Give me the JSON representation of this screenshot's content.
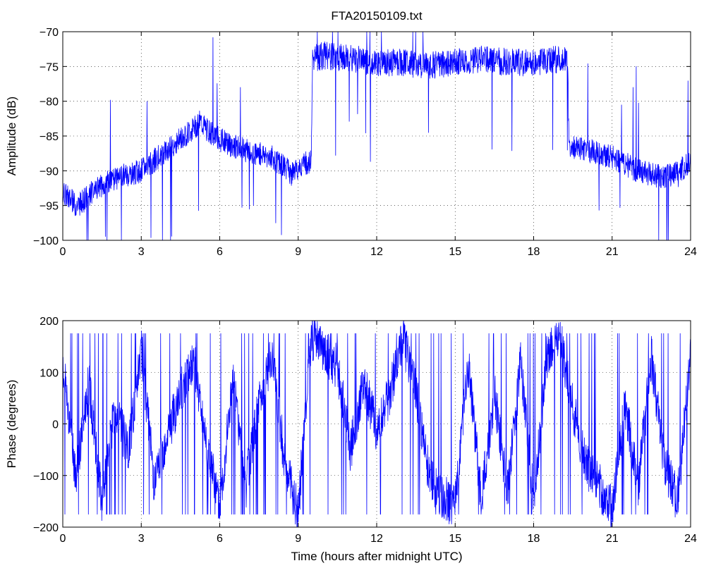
{
  "title": "FTA20150109.txt",
  "chart_data": [
    {
      "type": "line",
      "title": "FTA20150109.txt",
      "xlabel": "",
      "ylabel": "Amplitude (dB)",
      "xlim": [
        0,
        24
      ],
      "ylim": [
        -100,
        -70
      ],
      "xticks": [
        0,
        3,
        6,
        9,
        12,
        15,
        18,
        21,
        24
      ],
      "yticks": [
        -100,
        -95,
        -90,
        -85,
        -80,
        -75,
        -70
      ],
      "grid": true,
      "line_color": "#0000ff",
      "series": [
        {
          "x": [
            0,
            0.25,
            0.5,
            0.75,
            1.0,
            1.5,
            2.0,
            2.5,
            3.0,
            3.5,
            4.0,
            4.5,
            5.0,
            5.25,
            5.5,
            6.0,
            6.5,
            7.0,
            7.5,
            8.0,
            8.5,
            8.75,
            9.0,
            9.25,
            9.5,
            9.55,
            10,
            11,
            12,
            13,
            14,
            15,
            16,
            17,
            18,
            19,
            19.3,
            19.35,
            20,
            21,
            22,
            23,
            24
          ],
          "y": [
            -93,
            -94,
            -95,
            -94.5,
            -93.5,
            -92,
            -91,
            -90.5,
            -90,
            -88.5,
            -87,
            -85.5,
            -84,
            -83,
            -84,
            -85.5,
            -86.5,
            -87,
            -87.5,
            -88,
            -89.5,
            -90.5,
            -90,
            -89,
            -88.5,
            -73.5,
            -73,
            -73.5,
            -74,
            -74,
            -74.5,
            -74,
            -73.5,
            -74,
            -74,
            -73.5,
            -74,
            -86.5,
            -87,
            -88,
            -90,
            -91,
            -89
          ]
        }
      ]
    },
    {
      "type": "line",
      "title": "",
      "xlabel": "Time (hours after midnight UTC)",
      "ylabel": "Phase (degrees)",
      "xlim": [
        0,
        24
      ],
      "ylim": [
        -200,
        200
      ],
      "xticks": [
        0,
        3,
        6,
        9,
        12,
        15,
        18,
        21,
        24
      ],
      "yticks": [
        -200,
        -100,
        0,
        100,
        200
      ],
      "grid": true,
      "line_color": "#0000ff",
      "series": [
        {
          "x": [
            0,
            0.5,
            1.0,
            1.5,
            2.0,
            2.5,
            3.0,
            3.5,
            4.0,
            4.5,
            5.0,
            5.5,
            6.0,
            6.5,
            7.0,
            7.5,
            8.0,
            8.5,
            9.0,
            9.5,
            10.0,
            10.5,
            11.0,
            11.5,
            12.0,
            12.5,
            13.0,
            13.5,
            14.0,
            14.5,
            15.0,
            15.5,
            16.0,
            16.5,
            17.0,
            17.5,
            18.0,
            18.5,
            19.0,
            19.5,
            20.0,
            20.5,
            21.0,
            21.5,
            22.0,
            22.5,
            23.0,
            23.5,
            24.0
          ],
          "y": [
            120,
            -100,
            80,
            -150,
            40,
            -60,
            150,
            -120,
            -20,
            60,
            130,
            -40,
            -160,
            90,
            -120,
            40,
            130,
            -80,
            -170,
            170,
            140,
            110,
            -50,
            80,
            -10,
            60,
            170,
            60,
            -100,
            -140,
            -160,
            120,
            -150,
            60,
            -130,
            120,
            -150,
            130,
            170,
            30,
            -80,
            -120,
            -160,
            40,
            -120,
            130,
            -80,
            -150,
            130
          ]
        }
      ]
    }
  ]
}
